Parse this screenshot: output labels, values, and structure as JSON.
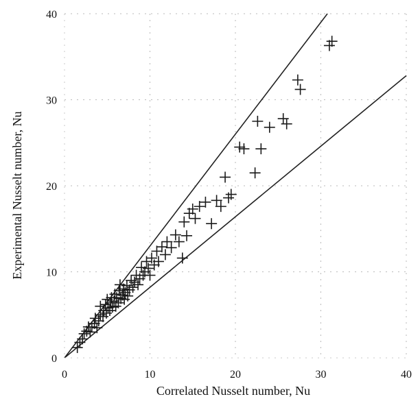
{
  "chart_data": {
    "type": "scatter",
    "title": "",
    "xlabel": "Correlated Nusselt number, Nu",
    "ylabel": "Experimental Nusselt number, Nu",
    "xlim": [
      0,
      40
    ],
    "ylim": [
      0,
      40
    ],
    "x_ticks": [
      0,
      10,
      20,
      30,
      40
    ],
    "y_ticks": [
      0,
      10,
      20,
      30,
      40
    ],
    "x_tick_labels": [
      "0",
      "10",
      "20",
      "30",
      "40"
    ],
    "y_tick_labels": [
      "0",
      "10",
      "20",
      "30",
      "40"
    ],
    "grid": true,
    "marker": "plus",
    "reference_lines": [
      {
        "slope": 1.3,
        "intercept": 0
      },
      {
        "slope": 0.82,
        "intercept": 0
      }
    ],
    "series": [
      {
        "points": [
          [
            1.5,
            1.2
          ],
          [
            1.8,
            1.8
          ],
          [
            2.1,
            2.2
          ],
          [
            2.3,
            2.8
          ],
          [
            2.6,
            3.1
          ],
          [
            2.8,
            3.6
          ],
          [
            3.0,
            3.0
          ],
          [
            3.2,
            3.6
          ],
          [
            3.5,
            4.0
          ],
          [
            3.6,
            4.6
          ],
          [
            3.8,
            3.5
          ],
          [
            4.0,
            4.3
          ],
          [
            4.2,
            5.0
          ],
          [
            4.2,
            6.0
          ],
          [
            4.5,
            4.8
          ],
          [
            4.6,
            5.5
          ],
          [
            4.8,
            6.2
          ],
          [
            4.9,
            5.2
          ],
          [
            5.0,
            6.8
          ],
          [
            5.1,
            5.8
          ],
          [
            5.3,
            5.5
          ],
          [
            5.4,
            6.4
          ],
          [
            5.5,
            7.0
          ],
          [
            5.6,
            5.9
          ],
          [
            5.8,
            6.6
          ],
          [
            5.9,
            7.4
          ],
          [
            6.0,
            6.0
          ],
          [
            6.1,
            7.0
          ],
          [
            6.3,
            6.4
          ],
          [
            6.4,
            7.8
          ],
          [
            6.5,
            8.5
          ],
          [
            6.6,
            6.9
          ],
          [
            6.8,
            7.3
          ],
          [
            6.9,
            8.0
          ],
          [
            7.0,
            6.8
          ],
          [
            7.1,
            7.6
          ],
          [
            7.3,
            8.4
          ],
          [
            7.4,
            7.2
          ],
          [
            7.6,
            7.9
          ],
          [
            7.8,
            9.0
          ],
          [
            8.0,
            8.2
          ],
          [
            8.2,
            8.8
          ],
          [
            8.4,
            9.6
          ],
          [
            8.6,
            8.5
          ],
          [
            8.8,
            9.2
          ],
          [
            9.0,
            10.5
          ],
          [
            9.2,
            9.6
          ],
          [
            9.4,
            10.0
          ],
          [
            9.6,
            11.2
          ],
          [
            9.8,
            10.4
          ],
          [
            10.0,
            9.6
          ],
          [
            10.2,
            11.6
          ],
          [
            10.5,
            10.8
          ],
          [
            10.8,
            12.4
          ],
          [
            11.0,
            11.2
          ],
          [
            11.4,
            12.9
          ],
          [
            11.8,
            12.0
          ],
          [
            12.0,
            13.5
          ],
          [
            12.5,
            12.8
          ],
          [
            13.0,
            14.3
          ],
          [
            13.4,
            13.5
          ],
          [
            13.8,
            11.6
          ],
          [
            14.0,
            15.8
          ],
          [
            14.3,
            14.2
          ],
          [
            14.6,
            16.8
          ],
          [
            15.0,
            17.3
          ],
          [
            15.3,
            16.2
          ],
          [
            15.8,
            17.6
          ],
          [
            16.5,
            18.1
          ],
          [
            17.2,
            15.6
          ],
          [
            17.8,
            18.3
          ],
          [
            18.3,
            17.6
          ],
          [
            18.8,
            21.0
          ],
          [
            19.2,
            18.6
          ],
          [
            19.5,
            19.0
          ],
          [
            20.5,
            24.5
          ],
          [
            21.0,
            24.3
          ],
          [
            22.3,
            21.5
          ],
          [
            22.6,
            27.5
          ],
          [
            23.0,
            24.3
          ],
          [
            24.0,
            26.8
          ],
          [
            25.6,
            27.8
          ],
          [
            26.0,
            27.2
          ],
          [
            27.3,
            32.3
          ],
          [
            27.6,
            31.2
          ],
          [
            31.0,
            36.3
          ],
          [
            31.3,
            36.8
          ]
        ]
      }
    ]
  }
}
